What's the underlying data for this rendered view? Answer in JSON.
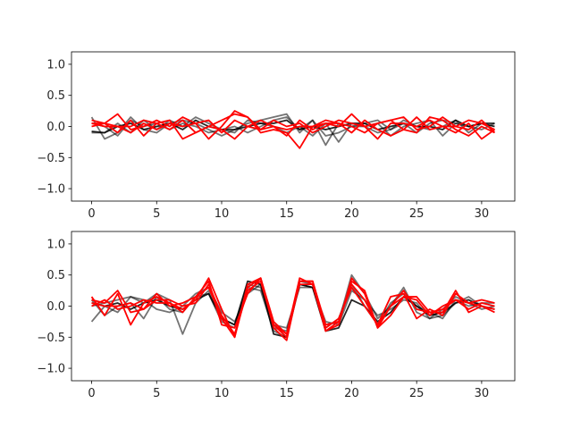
{
  "chart_data": [
    {
      "type": "line",
      "title": "",
      "xlabel": "",
      "ylabel": "",
      "xlim": [
        -1.55,
        32.55
      ],
      "ylim": [
        -1.2,
        1.2
      ],
      "xticks": [
        0,
        5,
        10,
        15,
        20,
        25,
        30
      ],
      "yticks": [
        -1.0,
        -0.5,
        0.0,
        0.5,
        1.0
      ],
      "xtick_labels": [
        "0",
        "5",
        "10",
        "15",
        "20",
        "25",
        "30"
      ],
      "ytick_labels": [
        "−1.0",
        "−0.5",
        "0.0",
        "0.5",
        "1.0"
      ],
      "grid": false,
      "x": [
        0,
        1,
        2,
        3,
        4,
        5,
        6,
        7,
        8,
        9,
        10,
        11,
        12,
        13,
        14,
        15,
        16,
        17,
        18,
        19,
        20,
        21,
        22,
        23,
        24,
        25,
        26,
        27,
        28,
        29,
        30,
        31
      ],
      "series": [
        {
          "color": "#000000",
          "opacity": 0.55,
          "values": [
            0.15,
            -0.2,
            -0.1,
            0.15,
            -0.05,
            -0.1,
            0.05,
            0.1,
            0.05,
            -0.05,
            -0.15,
            -0.05,
            0.05,
            0.1,
            0.15,
            0.2,
            -0.1,
            0.1,
            -0.15,
            -0.1,
            0.0,
            0.05,
            0.1,
            -0.05,
            0.05,
            -0.1,
            0.05,
            0.1,
            0.05,
            0.0,
            -0.05,
            0.05
          ]
        },
        {
          "color": "#000000",
          "opacity": 0.55,
          "values": [
            -0.1,
            -0.1,
            0.05,
            -0.1,
            0.1,
            -0.05,
            0.1,
            0.0,
            0.15,
            0.05,
            -0.05,
            0.0,
            -0.1,
            0.0,
            0.1,
            0.15,
            -0.05,
            0.1,
            -0.3,
            0.05,
            0.0,
            0.0,
            0.05,
            -0.15,
            0.0,
            0.05,
            0.1,
            -0.15,
            0.05,
            0.0,
            0.05,
            0.05
          ]
        },
        {
          "color": "#000000",
          "opacity": 0.55,
          "values": [
            0.05,
            0.0,
            -0.15,
            0.1,
            0.0,
            0.05,
            -0.05,
            0.05,
            0.0,
            -0.1,
            -0.05,
            -0.1,
            0.1,
            0.05,
            0.0,
            -0.1,
            0.0,
            -0.15,
            0.05,
            -0.25,
            0.05,
            0.0,
            -0.1,
            -0.05,
            0.1,
            0.0,
            -0.05,
            0.0,
            0.1,
            -0.1,
            0.05,
            0.05
          ]
        },
        {
          "color": "#000000",
          "opacity": 0.85,
          "values": [
            -0.08,
            -0.1,
            0.0,
            0.05,
            -0.05,
            0.0,
            0.05,
            -0.05,
            0.1,
            0.0,
            -0.05,
            -0.05,
            0.0,
            0.05,
            0.05,
            0.1,
            -0.05,
            0.0,
            -0.05,
            0.0,
            0.05,
            0.05,
            -0.05,
            0.0,
            0.05,
            0.0,
            0.0,
            -0.05,
            0.1,
            0.0,
            0.05,
            0.0
          ]
        },
        {
          "color": "#ff0000",
          "opacity": 1.0,
          "values": [
            0.05,
            0.05,
            -0.1,
            0.1,
            -0.15,
            0.05,
            0.1,
            -0.2,
            -0.1,
            0.0,
            0.1,
            0.2,
            0.15,
            -0.1,
            -0.05,
            -0.1,
            -0.35,
            0.0,
            0.05,
            0.05,
            0.0,
            -0.1,
            0.05,
            0.1,
            -0.05,
            -0.1,
            0.15,
            0.1,
            -0.05,
            -0.15,
            0.0,
            -0.1
          ]
        },
        {
          "color": "#ff0000",
          "opacity": 1.0,
          "values": [
            0.0,
            0.05,
            0.2,
            -0.05,
            0.0,
            0.1,
            0.0,
            0.15,
            0.05,
            -0.2,
            0.0,
            0.25,
            0.15,
            -0.05,
            0.1,
            0.0,
            0.05,
            -0.1,
            0.0,
            0.1,
            0.05,
            0.0,
            0.05,
            0.1,
            0.15,
            -0.05,
            0.0,
            0.15,
            0.0,
            0.1,
            0.05,
            -0.05
          ]
        },
        {
          "color": "#ff0000",
          "opacity": 1.0,
          "values": [
            0.1,
            0.05,
            0.0,
            0.0,
            0.1,
            0.05,
            -0.05,
            0.1,
            -0.1,
            0.0,
            -0.05,
            -0.2,
            0.0,
            0.1,
            0.0,
            -0.15,
            0.1,
            -0.05,
            0.05,
            0.0,
            0.2,
            0.0,
            -0.2,
            0.05,
            0.05,
            0.0,
            0.1,
            0.0,
            -0.1,
            0.05,
            -0.2,
            -0.05
          ]
        },
        {
          "color": "#ff0000",
          "opacity": 1.0,
          "values": [
            0.05,
            0.0,
            0.0,
            -0.1,
            0.05,
            -0.05,
            0.05,
            0.0,
            0.05,
            0.1,
            -0.1,
            0.1,
            0.0,
            -0.05,
            0.0,
            -0.05,
            0.0,
            0.0,
            0.1,
            0.05,
            -0.1,
            0.1,
            -0.05,
            -0.15,
            -0.05,
            0.15,
            -0.05,
            0.0,
            0.0,
            -0.05,
            0.1,
            -0.1
          ]
        }
      ]
    },
    {
      "type": "line",
      "title": "",
      "xlabel": "",
      "ylabel": "",
      "xlim": [
        -1.55,
        32.55
      ],
      "ylim": [
        -1.2,
        1.2
      ],
      "xticks": [
        0,
        5,
        10,
        15,
        20,
        25,
        30
      ],
      "yticks": [
        -1.0,
        -0.5,
        0.0,
        0.5,
        1.0
      ],
      "xtick_labels": [
        "0",
        "5",
        "10",
        "15",
        "20",
        "25",
        "30"
      ],
      "ytick_labels": [
        "−1.0",
        "−0.5",
        "0.0",
        "0.5",
        "1.0"
      ],
      "grid": false,
      "x": [
        0,
        1,
        2,
        3,
        4,
        5,
        6,
        7,
        8,
        9,
        10,
        11,
        12,
        13,
        14,
        15,
        16,
        17,
        18,
        19,
        20,
        21,
        22,
        23,
        24,
        25,
        26,
        27,
        28,
        29,
        30,
        31
      ],
      "series": [
        {
          "color": "#000000",
          "opacity": 0.55,
          "values": [
            -0.25,
            0.0,
            -0.1,
            0.15,
            0.05,
            0.2,
            0.1,
            -0.45,
            0.05,
            0.25,
            -0.2,
            -0.3,
            0.35,
            0.3,
            -0.35,
            -0.4,
            0.35,
            0.3,
            -0.3,
            -0.25,
            0.5,
            0.2,
            -0.2,
            0.0,
            0.3,
            -0.1,
            -0.2,
            -0.05,
            0.15,
            0.05,
            -0.05,
            0.0
          ]
        },
        {
          "color": "#000000",
          "opacity": 0.55,
          "values": [
            0.1,
            -0.15,
            0.0,
            0.05,
            -0.2,
            0.15,
            -0.05,
            -0.1,
            0.15,
            0.2,
            -0.25,
            -0.35,
            0.3,
            0.25,
            -0.4,
            -0.5,
            0.4,
            0.35,
            -0.35,
            -0.2,
            0.35,
            0.0,
            -0.3,
            0.05,
            0.2,
            0.0,
            -0.1,
            -0.2,
            0.1,
            0.0,
            0.05,
            0.05
          ]
        },
        {
          "color": "#000000",
          "opacity": 0.55,
          "values": [
            0.0,
            0.05,
            0.1,
            0.15,
            0.1,
            -0.05,
            -0.1,
            0.0,
            0.2,
            0.3,
            -0.1,
            -0.25,
            0.2,
            0.35,
            -0.3,
            -0.35,
            0.3,
            0.3,
            -0.25,
            -0.3,
            0.25,
            0.1,
            -0.15,
            -0.05,
            0.1,
            0.05,
            -0.2,
            -0.15,
            0.05,
            0.15,
            0.0,
            -0.05
          ]
        },
        {
          "color": "#000000",
          "opacity": 0.85,
          "values": [
            0.05,
            0.0,
            0.05,
            -0.05,
            0.05,
            0.1,
            0.0,
            -0.05,
            0.1,
            0.2,
            -0.2,
            -0.3,
            0.4,
            0.35,
            -0.45,
            -0.5,
            0.35,
            0.3,
            -0.4,
            -0.35,
            0.1,
            0.0,
            -0.25,
            -0.1,
            0.15,
            0.0,
            -0.15,
            -0.1,
            0.05,
            0.1,
            0.0,
            -0.05
          ]
        },
        {
          "color": "#ff0000",
          "opacity": 1.0,
          "values": [
            0.15,
            -0.15,
            0.2,
            -0.3,
            0.05,
            0.15,
            0.05,
            -0.05,
            0.1,
            0.45,
            -0.05,
            -0.5,
            0.3,
            0.45,
            -0.35,
            -0.55,
            0.4,
            0.4,
            -0.4,
            -0.3,
            0.45,
            0.2,
            -0.35,
            0.0,
            0.25,
            -0.05,
            -0.1,
            -0.1,
            0.25,
            -0.1,
            0.0,
            -0.1
          ]
        },
        {
          "color": "#ff0000",
          "opacity": 1.0,
          "values": [
            0.1,
            0.05,
            0.25,
            -0.1,
            -0.05,
            0.2,
            0.0,
            0.05,
            0.15,
            0.4,
            -0.3,
            -0.35,
            0.2,
            0.45,
            -0.25,
            -0.45,
            0.45,
            0.35,
            -0.35,
            -0.2,
            0.3,
            0.0,
            -0.3,
            0.15,
            0.2,
            -0.2,
            -0.05,
            -0.15,
            0.2,
            0.05,
            0.1,
            0.05
          ]
        },
        {
          "color": "#ff0000",
          "opacity": 1.0,
          "values": [
            0.0,
            0.1,
            -0.05,
            0.0,
            0.1,
            0.05,
            0.05,
            -0.1,
            0.15,
            0.3,
            -0.2,
            -0.5,
            0.35,
            0.45,
            -0.3,
            -0.5,
            0.4,
            0.4,
            -0.3,
            -0.25,
            0.4,
            0.25,
            -0.35,
            -0.15,
            0.15,
            0.15,
            -0.1,
            -0.05,
            0.1,
            -0.05,
            0.05,
            0.0
          ]
        },
        {
          "color": "#ff0000",
          "opacity": 1.0,
          "values": [
            0.05,
            0.0,
            0.0,
            0.05,
            -0.05,
            0.1,
            0.1,
            0.0,
            0.05,
            0.35,
            -0.15,
            -0.45,
            0.25,
            0.4,
            -0.3,
            -0.45,
            0.35,
            0.35,
            -0.4,
            -0.25,
            0.35,
            0.1,
            -0.3,
            0.0,
            0.15,
            0.1,
            -0.15,
            0.0,
            0.1,
            0.05,
            0.0,
            -0.05
          ]
        }
      ]
    }
  ]
}
